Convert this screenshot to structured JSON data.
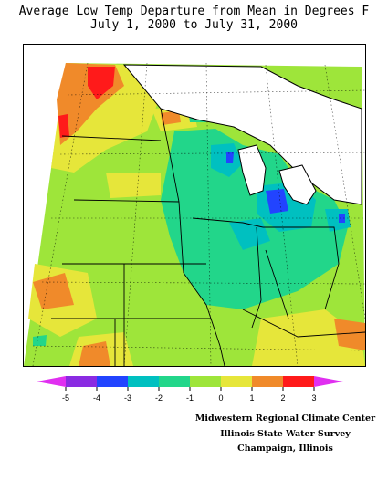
{
  "title": {
    "line1": "Average Low Temp Departure from Mean in Degrees F",
    "line2": "July 1, 2000 to July 31, 2000"
  },
  "map": {
    "dominant_anomaly_range": "-1 to 0",
    "warm_spots": [
      "northwestern corner (2 to 3+)",
      "western edge (1 to 2)"
    ],
    "cool_spots": [
      "central Wisconsin / Michigan (-2 to -4)",
      "Lake Huron region (-2 to -4)"
    ]
  },
  "legend": {
    "tick_labels": [
      "-5",
      "-4",
      "-3",
      "-2",
      "-1",
      "0",
      "1",
      "2",
      "3"
    ],
    "bins": [
      {
        "from": "<-5",
        "color": "#e02ff0"
      },
      {
        "from": "-5",
        "color": "#8a2be2"
      },
      {
        "from": "-4",
        "color": "#2244ff"
      },
      {
        "from": "-3",
        "color": "#00c0c0"
      },
      {
        "from": "-2",
        "color": "#22d68a"
      },
      {
        "from": "-1",
        "color": "#9ee53a"
      },
      {
        "from": "0",
        "color": "#e6e63a"
      },
      {
        "from": "1",
        "color": "#f08a2a"
      },
      {
        "from": "2",
        "color": "#ff1a1a"
      },
      {
        "from": ">3",
        "color": "#e02ff0"
      }
    ]
  },
  "credits": {
    "line1": "Midwestern Regional Climate Center",
    "line2": "Illinois State Water Survey",
    "line3": "Champaign, Illinois"
  }
}
